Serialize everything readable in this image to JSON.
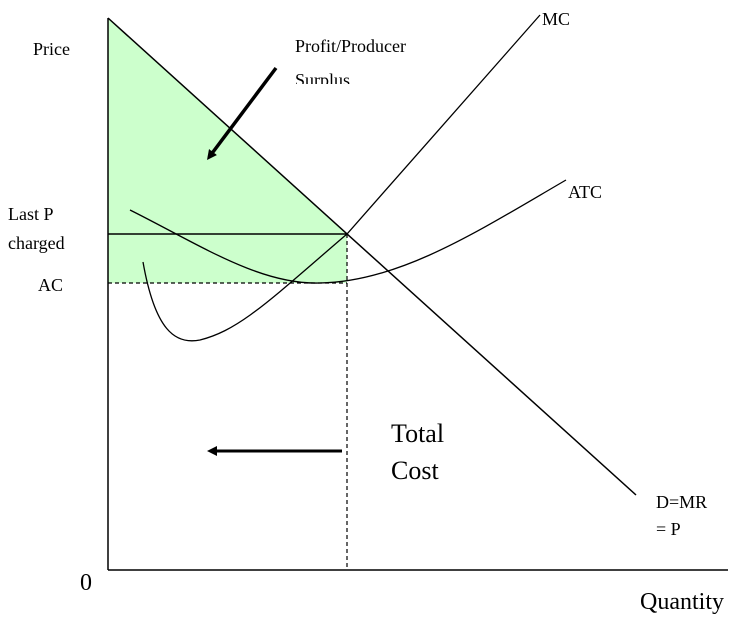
{
  "axes": {
    "y_label": "Price",
    "x_label": "Quantity",
    "origin": "0"
  },
  "curves": {
    "mc": "MC",
    "atc": "ATC",
    "demand": [
      "D=MR",
      "= P"
    ]
  },
  "levels": {
    "last_price": [
      "Last P",
      "charged"
    ],
    "average_cost": "AC"
  },
  "areas": {
    "profit": [
      "Profit/Producer",
      "Surplus"
    ],
    "total_cost": [
      "Total",
      "Cost"
    ]
  }
}
